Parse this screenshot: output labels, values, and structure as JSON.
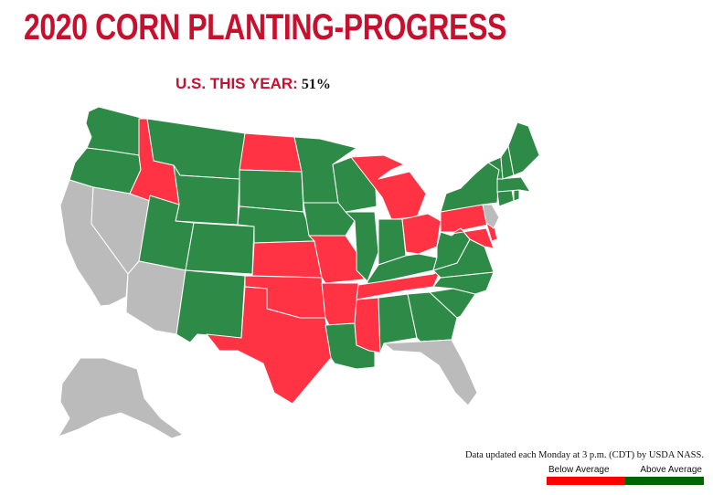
{
  "header": {
    "title": "2020 CORN PLANTING-PROGRESS",
    "us_label": "U.S. THIS YEAR:",
    "us_value": "51%"
  },
  "footer": {
    "update_note": "Data updated each Monday at 3 p.m. (CDT) by USDA NASS."
  },
  "legend": {
    "below_label": "Below Average",
    "above_label": "Above Average"
  },
  "colors": {
    "title": "#c8102e",
    "below": "#ff3344",
    "above": "#2e8b47",
    "nodata": "#bbbbbb",
    "legend_below": "#ff0000",
    "legend_above": "#006400"
  },
  "states": [
    {
      "name": "Washington",
      "status": "above"
    },
    {
      "name": "Oregon",
      "status": "above"
    },
    {
      "name": "California",
      "status": "nodata"
    },
    {
      "name": "Nevada",
      "status": "nodata"
    },
    {
      "name": "Idaho",
      "status": "below"
    },
    {
      "name": "Montana",
      "status": "above"
    },
    {
      "name": "Wyoming",
      "status": "above"
    },
    {
      "name": "Utah",
      "status": "above"
    },
    {
      "name": "Arizona",
      "status": "nodata"
    },
    {
      "name": "Colorado",
      "status": "above"
    },
    {
      "name": "New Mexico",
      "status": "above"
    },
    {
      "name": "North Dakota",
      "status": "below"
    },
    {
      "name": "South Dakota",
      "status": "above"
    },
    {
      "name": "Nebraska",
      "status": "above"
    },
    {
      "name": "Kansas",
      "status": "below"
    },
    {
      "name": "Oklahoma",
      "status": "below"
    },
    {
      "name": "Texas",
      "status": "below"
    },
    {
      "name": "Minnesota",
      "status": "above"
    },
    {
      "name": "Iowa",
      "status": "above"
    },
    {
      "name": "Missouri",
      "status": "below"
    },
    {
      "name": "Arkansas",
      "status": "below"
    },
    {
      "name": "Louisiana",
      "status": "above"
    },
    {
      "name": "Wisconsin",
      "status": "above"
    },
    {
      "name": "Illinois",
      "status": "above"
    },
    {
      "name": "Michigan",
      "status": "below"
    },
    {
      "name": "Indiana",
      "status": "above"
    },
    {
      "name": "Ohio",
      "status": "below"
    },
    {
      "name": "Kentucky",
      "status": "above"
    },
    {
      "name": "Tennessee",
      "status": "below"
    },
    {
      "name": "Mississippi",
      "status": "below"
    },
    {
      "name": "Alabama",
      "status": "above"
    },
    {
      "name": "Georgia",
      "status": "above"
    },
    {
      "name": "Florida",
      "status": "nodata"
    },
    {
      "name": "South Carolina",
      "status": "above"
    },
    {
      "name": "North Carolina",
      "status": "above"
    },
    {
      "name": "Virginia",
      "status": "above"
    },
    {
      "name": "West Virginia",
      "status": "above"
    },
    {
      "name": "Pennsylvania",
      "status": "below"
    },
    {
      "name": "Maryland",
      "status": "below"
    },
    {
      "name": "Delaware",
      "status": "below"
    },
    {
      "name": "New Jersey",
      "status": "nodata"
    },
    {
      "name": "New York",
      "status": "above"
    },
    {
      "name": "Connecticut",
      "status": "above"
    },
    {
      "name": "Rhode Island",
      "status": "above"
    },
    {
      "name": "Massachusetts",
      "status": "above"
    },
    {
      "name": "Vermont",
      "status": "above"
    },
    {
      "name": "New Hampshire",
      "status": "above"
    },
    {
      "name": "Maine",
      "status": "above"
    },
    {
      "name": "Alaska",
      "status": "nodata"
    }
  ]
}
